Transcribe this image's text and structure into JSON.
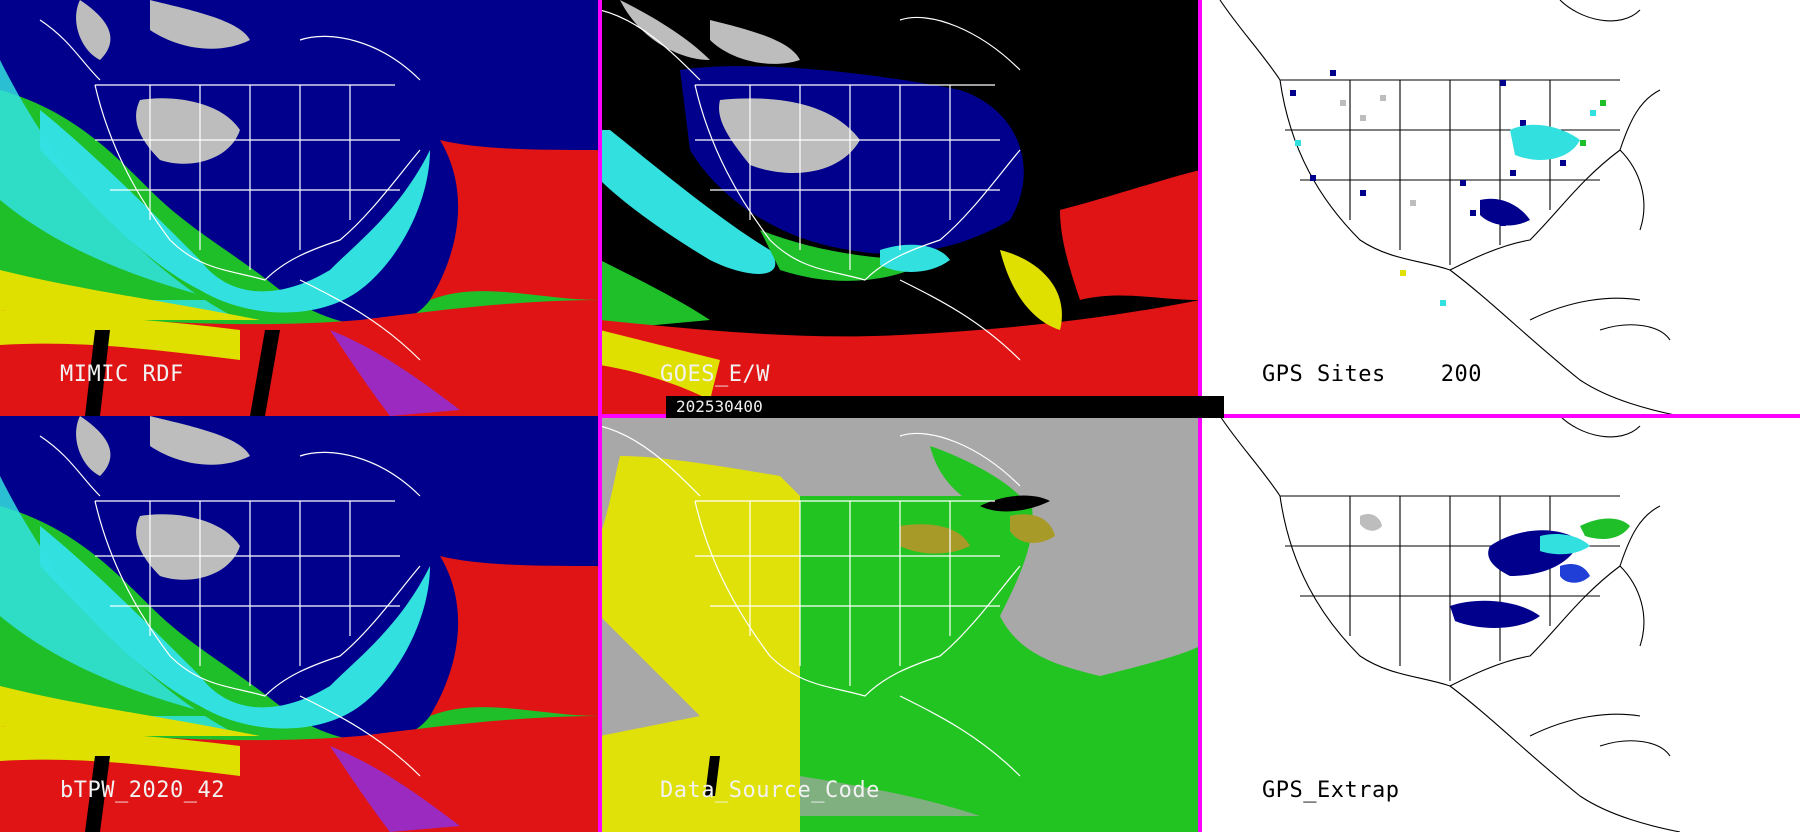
{
  "panels": [
    {
      "label": "MIMIC RDF"
    },
    {
      "label": "GOES_E/W"
    },
    {
      "label": "GPS Sites",
      "count": "200"
    },
    {
      "label": "bTPW_2020_42"
    },
    {
      "label": "Data_Source_Code"
    },
    {
      "label": "GPS_Extrap"
    }
  ],
  "timestamp": "202530400",
  "colors": {
    "divider": "#ff00ff",
    "tpw_low_gray": "#bdbdbd",
    "tpw_navy": "#00008c",
    "tpw_blue": "#1f3fd6",
    "tpw_cyan": "#33e0e0",
    "tpw_green": "#1fbf2a",
    "tpw_yellow": "#e0e000",
    "tpw_red": "#e01414",
    "tpw_purple": "#9a2ac0",
    "source_gray": "#a8a8a8",
    "source_green": "#22c422",
    "source_yellow": "#e1e10a",
    "source_olive": "#a89a28"
  }
}
